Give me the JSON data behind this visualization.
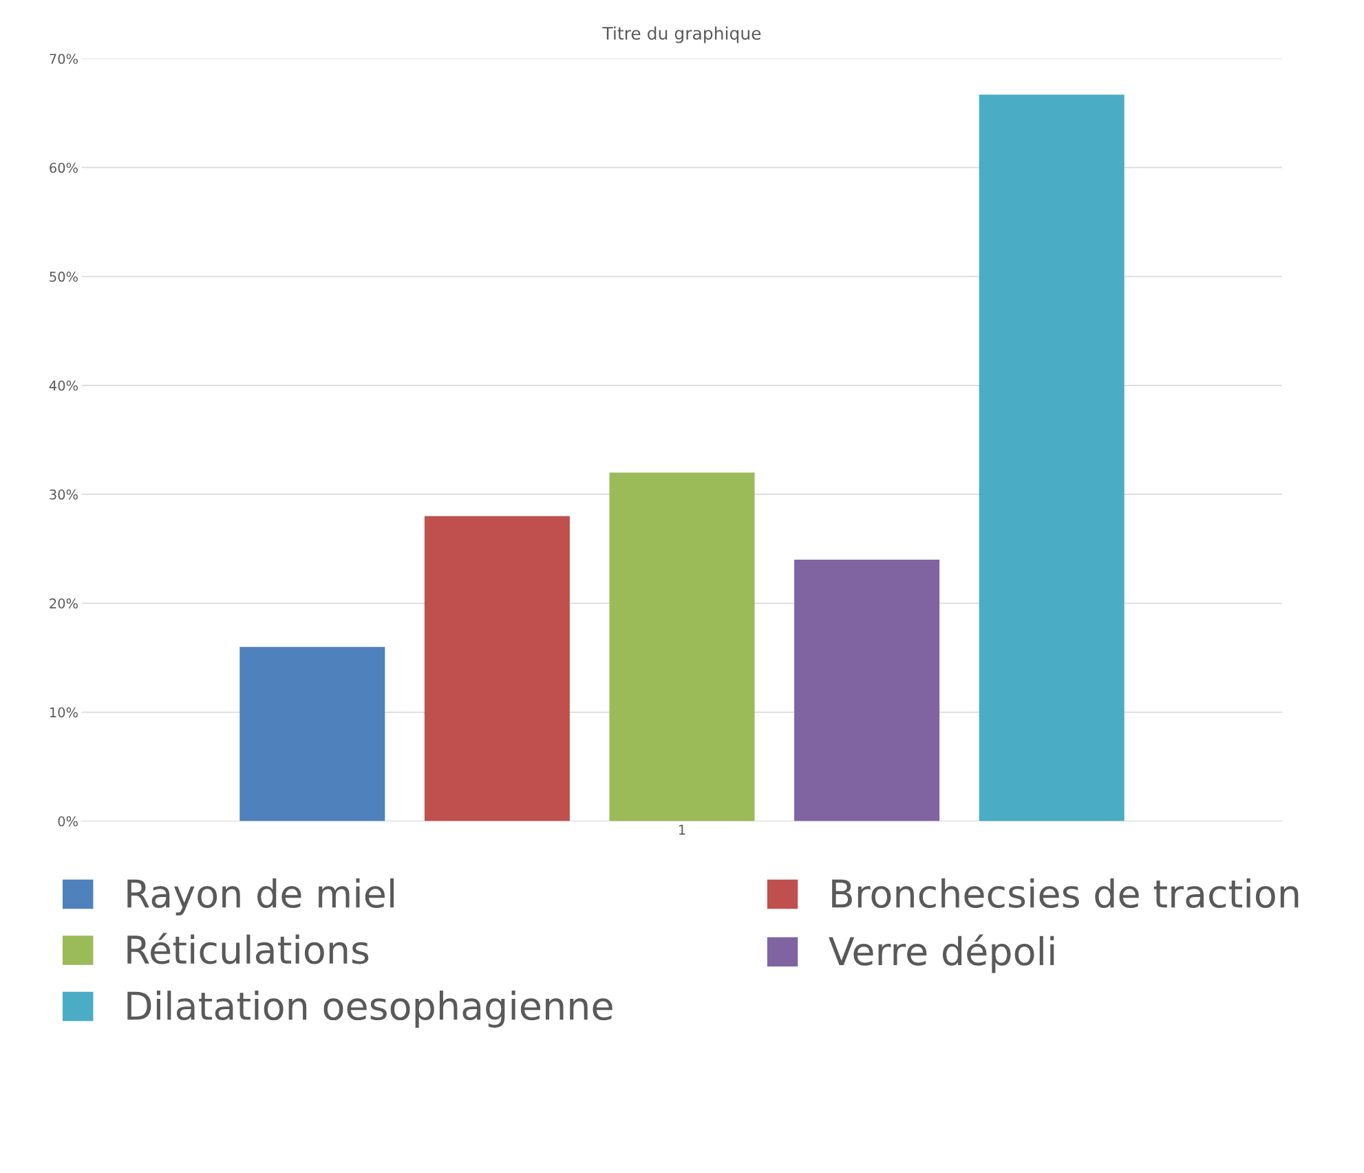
{
  "chart_data": {
    "type": "bar",
    "title": "Titre du graphique",
    "categories": [
      "1"
    ],
    "series": [
      {
        "name": "Rayon de miel",
        "color": "#4f81bd",
        "values": [
          16
        ]
      },
      {
        "name": "Bronchecsies de traction",
        "color": "#c0504d",
        "values": [
          28
        ]
      },
      {
        "name": "Réticulations",
        "color": "#9bbb59",
        "values": [
          32
        ]
      },
      {
        "name": "Verre dépoli",
        "color": "#8064a2",
        "values": [
          24
        ]
      },
      {
        "name": "Dilatation oesophagienne",
        "color": "#4bacc6",
        "values": [
          66.7
        ]
      }
    ],
    "ylim": [
      0,
      70
    ],
    "yticks": [
      {
        "value": 0,
        "label": "0%"
      },
      {
        "value": 10,
        "label": "10%"
      },
      {
        "value": 20,
        "label": "20%"
      },
      {
        "value": 30,
        "label": "30%"
      },
      {
        "value": 40,
        "label": "40%"
      },
      {
        "value": 50,
        "label": "50%"
      },
      {
        "value": 60,
        "label": "60%"
      },
      {
        "value": 70,
        "label": "70%"
      }
    ],
    "grid": "y",
    "legend": "bottom"
  }
}
